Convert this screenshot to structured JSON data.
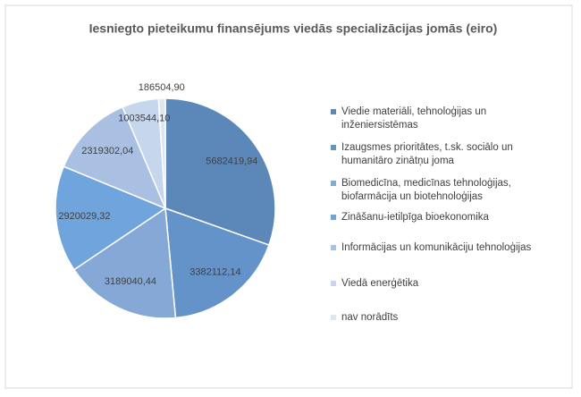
{
  "chart_data": {
    "type": "pie",
    "title": "Iesniegto pieteikumu finansējums viedās specializācijas jomās (eiro)",
    "categories": [
      "Viedie materiāli, tehnoloģijas un inženiersistēmas",
      "Izaugsmes prioritātes, t.sk. sociālo un humanitāro zinātņu joma",
      "Biomedicīna, medicīnas tehnoloģijas, biofarmācija un biotehnoloģijas",
      "Zināšanu-ietilpīga bioekonomika",
      "Informācijas un komunikāciju tehnoloģijas",
      "Viedā enerģētika",
      "nav norādīts"
    ],
    "values": [
      5682419.94,
      3382112.14,
      3189040.44,
      2920029.32,
      2319302.04,
      1003544.1,
      186504.9
    ],
    "value_labels": [
      "5682419,94",
      "3382112,14",
      "3189040,44",
      "2920029,32",
      "2319302,04",
      "1003544,10",
      "186504,90"
    ],
    "colors": [
      "#5b87b9",
      "#6393c9",
      "#86a8d6",
      "#6fa4dc",
      "#a9c0e2",
      "#c6d6ec",
      "#dde7f4"
    ],
    "legend": "right"
  }
}
